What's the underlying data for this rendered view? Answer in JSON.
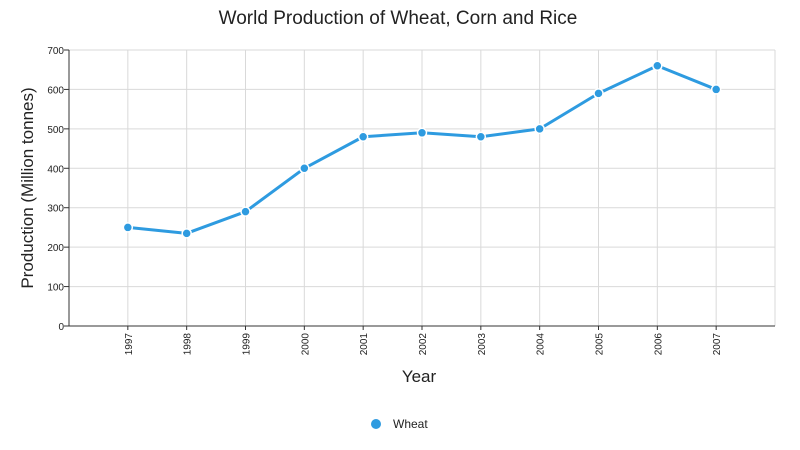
{
  "chart_data": {
    "type": "line",
    "title": "World Production of Wheat, Corn and Rice",
    "xlabel": "Year",
    "ylabel": "Production (Million tonnes)",
    "categories": [
      "1997",
      "1998",
      "1999",
      "2000",
      "2001",
      "2002",
      "2003",
      "2004",
      "2005",
      "2006",
      "2007"
    ],
    "ylim": [
      0,
      700
    ],
    "yticks": [
      0,
      100,
      200,
      300,
      400,
      500,
      600,
      700
    ],
    "grid": true,
    "legend_position": "bottom-center",
    "series": [
      {
        "name": "Wheat",
        "color": "#2e9be0",
        "values": [
          250,
          235,
          290,
          400,
          480,
          490,
          480,
          500,
          590,
          660,
          600
        ]
      }
    ]
  }
}
